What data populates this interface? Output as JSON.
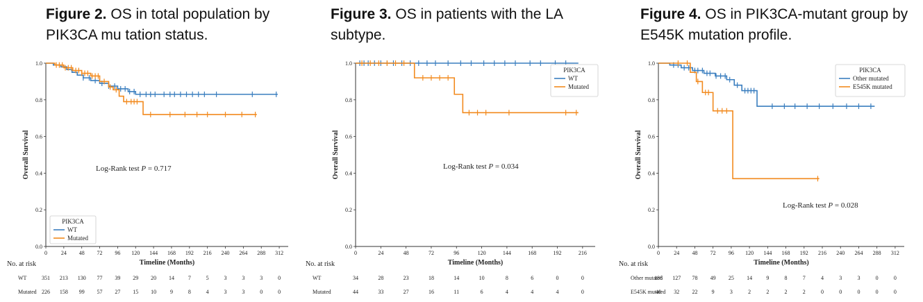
{
  "colors": {
    "wt": "#3a7ebf",
    "mutated": "#f28a1e",
    "axis": "#333333"
  },
  "figures": [
    {
      "num": "Figure 2.",
      "caption": "OS in total population by PIK3CA mu tation status."
    },
    {
      "num": "Figure 3.",
      "caption": "OS in patients with the LA subtype."
    },
    {
      "num": "Figure 4.",
      "caption": "OS in PIK3CA-mutant group by E545K mutation profile."
    }
  ],
  "chart_data": [
    {
      "type": "line",
      "title": "OS in total population by PIK3CA mu tation status.",
      "xlabel": "Timeline (Months)",
      "ylabel": "Overall Survival",
      "xlim": [
        0,
        324
      ],
      "ylim": [
        0,
        1
      ],
      "xticks": [
        0,
        24,
        48,
        72,
        96,
        120,
        144,
        168,
        192,
        216,
        240,
        264,
        288,
        312
      ],
      "yticks": [
        "0.0",
        "0.2",
        "0.4",
        "0.6",
        "0.8",
        "1.0"
      ],
      "annotation": {
        "prefix": "Log-Rank test ",
        "p": "P",
        "suffix": " = 0.717"
      },
      "legend": {
        "title": "PIK3CA",
        "entries": [
          "WT",
          "Mutated"
        ],
        "location": "bottom-left"
      },
      "series": [
        {
          "name": "WT",
          "color": "wt",
          "steps": [
            [
              0,
              1.0
            ],
            [
              10,
              0.99
            ],
            [
              20,
              0.98
            ],
            [
              28,
              0.965
            ],
            [
              35,
              0.95
            ],
            [
              42,
              0.935
            ],
            [
              50,
              0.92
            ],
            [
              60,
              0.905
            ],
            [
              72,
              0.89
            ],
            [
              84,
              0.875
            ],
            [
              96,
              0.86
            ],
            [
              110,
              0.845
            ],
            [
              120,
              0.83
            ],
            [
              310,
              0.83
            ]
          ],
          "censors": [
            50,
            58,
            66,
            75,
            84,
            92,
            100,
            106,
            112,
            118,
            126,
            134,
            140,
            146,
            158,
            166,
            172,
            180,
            188,
            196,
            204,
            212,
            228,
            276,
            308
          ]
        },
        {
          "name": "Mutated",
          "color": "mutated",
          "steps": [
            [
              0,
              1.0
            ],
            [
              12,
              0.99
            ],
            [
              24,
              0.975
            ],
            [
              36,
              0.96
            ],
            [
              48,
              0.945
            ],
            [
              60,
              0.93
            ],
            [
              72,
              0.9
            ],
            [
              84,
              0.87
            ],
            [
              90,
              0.855
            ],
            [
              98,
              0.82
            ],
            [
              104,
              0.79
            ],
            [
              125,
              0.79
            ],
            [
              130,
              0.72
            ],
            [
              282,
              0.72
            ]
          ],
          "censors": [
            14,
            18,
            22,
            26,
            30,
            34,
            40,
            44,
            48,
            52,
            56,
            62,
            66,
            70,
            78,
            86,
            94,
            108,
            114,
            118,
            122,
            140,
            166,
            186,
            202,
            216,
            240,
            262,
            280
          ]
        }
      ],
      "risk_table": {
        "header": "No. at risk",
        "rows": [
          {
            "label": "WT",
            "values": [
              "351",
              "213",
              "130",
              "77",
              "39",
              "29",
              "20",
              "14",
              "7",
              "5",
              "3",
              "3",
              "3",
              "0"
            ]
          },
          {
            "label": "Mutated",
            "values": [
              "226",
              "158",
              "99",
              "57",
              "27",
              "15",
              "10",
              "9",
              "8",
              "4",
              "3",
              "3",
              "0",
              "0"
            ]
          }
        ]
      }
    },
    {
      "type": "line",
      "title": "OS in patients with the LA subtype.",
      "xlabel": "Timeline (Months)",
      "ylabel": "Overall Survival",
      "xlim": [
        0,
        228
      ],
      "ylim": [
        0,
        1
      ],
      "xticks": [
        0,
        24,
        48,
        72,
        96,
        120,
        144,
        168,
        192,
        216
      ],
      "yticks": [
        "0.0",
        "0.2",
        "0.4",
        "0.6",
        "0.8",
        "1.0"
      ],
      "annotation": {
        "prefix": "Log-Rank test ",
        "p": "P",
        "suffix": " = 0.034"
      },
      "legend": {
        "title": "PIK3CA",
        "entries": [
          "WT",
          "Mutated"
        ],
        "location": "top-right"
      },
      "series": [
        {
          "name": "WT",
          "color": "wt",
          "steps": [
            [
              0,
              1.0
            ],
            [
              212,
              1.0
            ]
          ],
          "censors": [
            4,
            8,
            12,
            18,
            24,
            30,
            36,
            44,
            52,
            60,
            68,
            76,
            88,
            100,
            110,
            122,
            132,
            142,
            152,
            166,
            176,
            190,
            200
          ]
        },
        {
          "name": "Mutated",
          "color": "mutated",
          "steps": [
            [
              0,
              1.0
            ],
            [
              54,
              1.0
            ],
            [
              56,
              0.92
            ],
            [
              92,
              0.92
            ],
            [
              94,
              0.83
            ],
            [
              100,
              0.83
            ],
            [
              102,
              0.73
            ],
            [
              212,
              0.73
            ]
          ],
          "censors": [
            6,
            14,
            22,
            30,
            38,
            46,
            64,
            72,
            80,
            88,
            108,
            116,
            124,
            146,
            200,
            210
          ]
        }
      ],
      "risk_table": {
        "header": "No. at risk",
        "rows": [
          {
            "label": "WT",
            "values": [
              "34",
              "28",
              "23",
              "18",
              "14",
              "10",
              "8",
              "6",
              "0",
              "0"
            ]
          },
          {
            "label": "Mutated",
            "values": [
              "44",
              "33",
              "27",
              "16",
              "11",
              "6",
              "4",
              "4",
              "4",
              "0"
            ]
          }
        ]
      }
    },
    {
      "type": "line",
      "title": "OS in PIK3CA-mutant group by E545K mutation profile.",
      "xlabel": "Timeline (Months)",
      "ylabel": "Overall Survival",
      "xlim": [
        0,
        324
      ],
      "ylim": [
        0,
        1
      ],
      "xticks": [
        0,
        24,
        48,
        72,
        96,
        120,
        144,
        168,
        192,
        216,
        240,
        264,
        288,
        312
      ],
      "yticks": [
        "0.0",
        "0.2",
        "0.4",
        "0.6",
        "0.8",
        "1.0"
      ],
      "annotation": {
        "prefix": "Log-Rank test ",
        "p": "P",
        "suffix": " = 0.028"
      },
      "legend": {
        "title": "PIK3CA",
        "entries": [
          "Other mutated",
          "E545K mutated"
        ],
        "location": "top-right"
      },
      "series": [
        {
          "name": "Other mutated",
          "color": "wt",
          "steps": [
            [
              0,
              1.0
            ],
            [
              15,
              0.99
            ],
            [
              30,
              0.975
            ],
            [
              45,
              0.96
            ],
            [
              60,
              0.945
            ],
            [
              75,
              0.93
            ],
            [
              90,
              0.91
            ],
            [
              100,
              0.88
            ],
            [
              110,
              0.85
            ],
            [
              128,
              0.85
            ],
            [
              130,
              0.765
            ],
            [
              285,
              0.765
            ]
          ],
          "censors": [
            20,
            26,
            34,
            40,
            48,
            52,
            58,
            64,
            68,
            76,
            82,
            88,
            94,
            104,
            114,
            118,
            122,
            126,
            150,
            166,
            180,
            196,
            212,
            230,
            248,
            264,
            280
          ]
        },
        {
          "name": "E545K mutated",
          "color": "mutated",
          "steps": [
            [
              0,
              1.0
            ],
            [
              36,
              1.0
            ],
            [
              42,
              0.95
            ],
            [
              50,
              0.9
            ],
            [
              58,
              0.84
            ],
            [
              70,
              0.84
            ],
            [
              72,
              0.74
            ],
            [
              96,
              0.74
            ],
            [
              98,
              0.37
            ],
            [
              212,
              0.37
            ]
          ],
          "censors": [
            26,
            38,
            52,
            62,
            66,
            78,
            84,
            90,
            210
          ]
        }
      ],
      "risk_table": {
        "header": "No. at risk",
        "rows": [
          {
            "label": "Other mutated",
            "values": [
              "186",
              "127",
              "78",
              "49",
              "25",
              "14",
              "9",
              "8",
              "7",
              "4",
              "3",
              "3",
              "0",
              "0"
            ]
          },
          {
            "label": "E545K mutated",
            "values": [
              "40",
              "32",
              "22",
              "9",
              "3",
              "2",
              "2",
              "2",
              "2",
              "0",
              "0",
              "0",
              "0",
              "0"
            ]
          }
        ]
      }
    }
  ]
}
